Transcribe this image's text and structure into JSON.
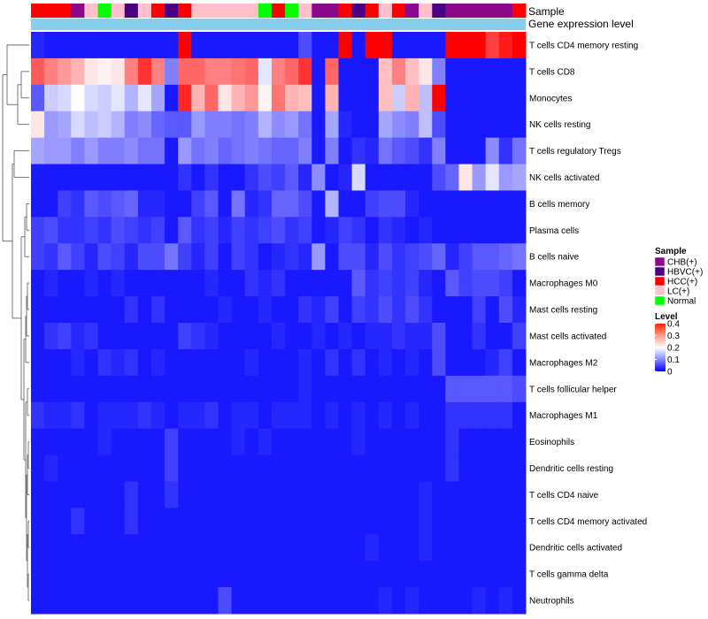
{
  "chart_data": {
    "type": "heatmap",
    "title": "",
    "annotation_labels": {
      "sample": "Sample",
      "expression": "Gene expression level"
    },
    "row_labels": [
      "T cells CD4 memory resting",
      "T cells CD8",
      "Monocytes",
      "NK cells resting",
      "T cells regulatory  Tregs",
      "NK cells activated",
      "B cells memory",
      "Plasma cells",
      "B cells naive",
      "Macrophages M0",
      "Mast cells resting",
      "Mast cells activated",
      "Macrophages M2",
      "T cells follicular helper",
      "Macrophages M1",
      "Eosinophils",
      "Dendritic cells resting",
      "T cells CD4 naive",
      "T cells CD4 memory activated",
      "Dendritic cells activated",
      "T cells gamma delta",
      "Neutrophils"
    ],
    "sample_groups": [
      "HCC(+)",
      "HCC(+)",
      "HCC(+)",
      "CHB(+)",
      "LC(+)",
      "Normal",
      "LC(+)",
      "HBVC(+)",
      "LC(+)",
      "HCC(+)",
      "HBVC(+)",
      "HCC(+)",
      "LC(+)",
      "LC(+)",
      "LC(+)",
      "LC(+)",
      "LC(+)",
      "Normal",
      "HCC(+)",
      "Normal",
      "LC(+)",
      "CHB(+)",
      "CHB(+)",
      "HCC(+)",
      "HBVC(+)",
      "HCC(+)",
      "LC(+)",
      "HCC(+)",
      "CHB(+)",
      "LC(+)",
      "HBVC(+)",
      "CHB(+)",
      "CHB(+)",
      "CHB(+)",
      "CHB(+)",
      "CHB(+)",
      "HCC(+)"
    ],
    "values": [
      [
        0.03,
        0.02,
        0.02,
        0.02,
        0.02,
        0.02,
        0.02,
        0.02,
        0.02,
        0.02,
        0.02,
        0.4,
        0.02,
        0.02,
        0.02,
        0.02,
        0.02,
        0.02,
        0.02,
        0.02,
        0.06,
        0.02,
        0.02,
        0.4,
        0.02,
        0.4,
        0.4,
        0.02,
        0.02,
        0.02,
        0.02,
        0.4,
        0.4,
        0.4,
        0.35,
        0.38,
        0.4
      ],
      [
        0.33,
        0.3,
        0.28,
        0.26,
        0.22,
        0.21,
        0.22,
        0.3,
        0.36,
        0.3,
        0.1,
        0.32,
        0.32,
        0.3,
        0.3,
        0.31,
        0.32,
        0.18,
        0.3,
        0.32,
        0.36,
        0.02,
        0.32,
        0.02,
        0.02,
        0.02,
        0.25,
        0.3,
        0.25,
        0.22,
        0.1,
        0.02,
        0.02,
        0.02,
        0.02,
        0.02,
        0.02
      ],
      [
        0.07,
        0.16,
        0.17,
        0.2,
        0.17,
        0.16,
        0.18,
        0.14,
        0.18,
        0.13,
        0.02,
        0.37,
        0.26,
        0.32,
        0.22,
        0.26,
        0.28,
        0.21,
        0.31,
        0.26,
        0.25,
        0.02,
        0.26,
        0.02,
        0.02,
        0.02,
        0.25,
        0.16,
        0.26,
        0.15,
        0.4,
        0.02,
        0.02,
        0.02,
        0.02,
        0.02,
        0.02
      ],
      [
        0.22,
        0.12,
        0.13,
        0.17,
        0.15,
        0.16,
        0.14,
        0.1,
        0.11,
        0.08,
        0.07,
        0.07,
        0.12,
        0.1,
        0.1,
        0.09,
        0.1,
        0.14,
        0.11,
        0.12,
        0.09,
        0.02,
        0.13,
        0.03,
        0.02,
        0.02,
        0.13,
        0.11,
        0.1,
        0.15,
        0.06,
        0.02,
        0.02,
        0.02,
        0.02,
        0.02,
        0.02
      ],
      [
        0.13,
        0.12,
        0.12,
        0.1,
        0.12,
        0.1,
        0.1,
        0.11,
        0.09,
        0.09,
        0.02,
        0.12,
        0.09,
        0.1,
        0.08,
        0.09,
        0.1,
        0.09,
        0.08,
        0.08,
        0.1,
        0.02,
        0.1,
        0.02,
        0.04,
        0.03,
        0.09,
        0.07,
        0.06,
        0.04,
        0.1,
        0.02,
        0.02,
        0.02,
        0.11,
        0.04,
        0.09
      ],
      [
        0.02,
        0.02,
        0.02,
        0.02,
        0.02,
        0.02,
        0.02,
        0.02,
        0.02,
        0.02,
        0.02,
        0.04,
        0.02,
        0.04,
        0.02,
        0.02,
        0.04,
        0.06,
        0.05,
        0.07,
        0.03,
        0.11,
        0.02,
        0.03,
        0.17,
        0.02,
        0.02,
        0.02,
        0.02,
        0.02,
        0.06,
        0.08,
        0.22,
        0.12,
        0.18,
        0.12,
        0.13
      ],
      [
        0.02,
        0.02,
        0.05,
        0.04,
        0.07,
        0.06,
        0.07,
        0.08,
        0.03,
        0.03,
        0.02,
        0.02,
        0.05,
        0.07,
        0.02,
        0.09,
        0.03,
        0.04,
        0.08,
        0.08,
        0.06,
        0.02,
        0.14,
        0.02,
        0.02,
        0.05,
        0.06,
        0.06,
        0.03,
        0.02,
        0.02,
        0.02,
        0.02,
        0.02,
        0.02,
        0.02,
        0.02
      ],
      [
        0.05,
        0.06,
        0.04,
        0.04,
        0.05,
        0.04,
        0.06,
        0.05,
        0.04,
        0.05,
        0.02,
        0.07,
        0.04,
        0.05,
        0.03,
        0.05,
        0.04,
        0.05,
        0.06,
        0.04,
        0.05,
        0.02,
        0.03,
        0.05,
        0.04,
        0.02,
        0.04,
        0.03,
        0.02,
        0.03,
        0.02,
        0.02,
        0.02,
        0.02,
        0.02,
        0.02,
        0.02
      ],
      [
        0.05,
        0.04,
        0.07,
        0.05,
        0.03,
        0.06,
        0.05,
        0.03,
        0.06,
        0.06,
        0.09,
        0.05,
        0.03,
        0.05,
        0.02,
        0.05,
        0.04,
        0.02,
        0.03,
        0.04,
        0.03,
        0.12,
        0.02,
        0.06,
        0.06,
        0.03,
        0.06,
        0.04,
        0.05,
        0.06,
        0.08,
        0.03,
        0.05,
        0.07,
        0.07,
        0.08,
        0.09
      ],
      [
        0.02,
        0.03,
        0.02,
        0.02,
        0.03,
        0.02,
        0.03,
        0.02,
        0.02,
        0.02,
        0.02,
        0.02,
        0.02,
        0.03,
        0.02,
        0.02,
        0.04,
        0.03,
        0.04,
        0.02,
        0.02,
        0.02,
        0.02,
        0.02,
        0.07,
        0.04,
        0.05,
        0.04,
        0.05,
        0.03,
        0.02,
        0.07,
        0.05,
        0.06,
        0.06,
        0.05,
        0.02
      ],
      [
        0.02,
        0.02,
        0.02,
        0.02,
        0.02,
        0.02,
        0.02,
        0.04,
        0.02,
        0.04,
        0.02,
        0.02,
        0.02,
        0.02,
        0.03,
        0.02,
        0.02,
        0.03,
        0.02,
        0.02,
        0.04,
        0.03,
        0.05,
        0.02,
        0.05,
        0.04,
        0.06,
        0.04,
        0.06,
        0.04,
        0.02,
        0.02,
        0.02,
        0.05,
        0.02,
        0.06,
        0.03
      ],
      [
        0.02,
        0.04,
        0.05,
        0.03,
        0.04,
        0.02,
        0.02,
        0.02,
        0.02,
        0.02,
        0.02,
        0.05,
        0.04,
        0.03,
        0.02,
        0.02,
        0.02,
        0.02,
        0.03,
        0.02,
        0.02,
        0.03,
        0.02,
        0.03,
        0.02,
        0.03,
        0.03,
        0.04,
        0.03,
        0.03,
        0.06,
        0.02,
        0.02,
        0.04,
        0.02,
        0.02,
        0.05
      ],
      [
        0.02,
        0.02,
        0.02,
        0.03,
        0.02,
        0.04,
        0.03,
        0.04,
        0.02,
        0.03,
        0.02,
        0.02,
        0.02,
        0.02,
        0.02,
        0.02,
        0.03,
        0.02,
        0.02,
        0.02,
        0.03,
        0.02,
        0.04,
        0.02,
        0.04,
        0.02,
        0.03,
        0.02,
        0.03,
        0.02,
        0.06,
        0.02,
        0.02,
        0.02,
        0.03,
        0.05,
        0.02
      ],
      [
        0.02,
        0.02,
        0.02,
        0.02,
        0.02,
        0.02,
        0.02,
        0.02,
        0.02,
        0.02,
        0.02,
        0.02,
        0.02,
        0.02,
        0.02,
        0.02,
        0.02,
        0.02,
        0.02,
        0.02,
        0.03,
        0.02,
        0.02,
        0.02,
        0.02,
        0.02,
        0.02,
        0.02,
        0.02,
        0.02,
        0.02,
        0.07,
        0.07,
        0.07,
        0.07,
        0.07,
        0.06
      ],
      [
        0.04,
        0.03,
        0.03,
        0.04,
        0.02,
        0.03,
        0.03,
        0.03,
        0.04,
        0.03,
        0.02,
        0.03,
        0.03,
        0.04,
        0.02,
        0.03,
        0.03,
        0.02,
        0.03,
        0.03,
        0.03,
        0.02,
        0.03,
        0.02,
        0.03,
        0.02,
        0.03,
        0.02,
        0.03,
        0.02,
        0.02,
        0.04,
        0.04,
        0.04,
        0.04,
        0.04,
        0.02
      ],
      [
        0.02,
        0.02,
        0.02,
        0.02,
        0.02,
        0.03,
        0.02,
        0.02,
        0.02,
        0.02,
        0.05,
        0.02,
        0.02,
        0.02,
        0.02,
        0.03,
        0.02,
        0.03,
        0.02,
        0.02,
        0.02,
        0.02,
        0.02,
        0.02,
        0.03,
        0.02,
        0.02,
        0.02,
        0.02,
        0.02,
        0.02,
        0.04,
        0.02,
        0.02,
        0.02,
        0.02,
        0.02
      ],
      [
        0.02,
        0.03,
        0.02,
        0.02,
        0.02,
        0.02,
        0.02,
        0.02,
        0.02,
        0.02,
        0.05,
        0.02,
        0.02,
        0.02,
        0.02,
        0.02,
        0.02,
        0.02,
        0.02,
        0.02,
        0.02,
        0.02,
        0.02,
        0.02,
        0.02,
        0.02,
        0.02,
        0.02,
        0.02,
        0.02,
        0.02,
        0.04,
        0.02,
        0.02,
        0.02,
        0.02,
        0.02
      ],
      [
        0.02,
        0.02,
        0.02,
        0.02,
        0.02,
        0.02,
        0.02,
        0.04,
        0.02,
        0.02,
        0.04,
        0.02,
        0.02,
        0.02,
        0.02,
        0.02,
        0.02,
        0.02,
        0.02,
        0.02,
        0.02,
        0.02,
        0.02,
        0.02,
        0.02,
        0.02,
        0.02,
        0.02,
        0.02,
        0.03,
        0.02,
        0.02,
        0.02,
        0.02,
        0.02,
        0.02,
        0.02
      ],
      [
        0.02,
        0.02,
        0.02,
        0.04,
        0.02,
        0.02,
        0.02,
        0.04,
        0.02,
        0.02,
        0.02,
        0.02,
        0.02,
        0.02,
        0.02,
        0.02,
        0.02,
        0.02,
        0.02,
        0.02,
        0.02,
        0.02,
        0.02,
        0.02,
        0.02,
        0.02,
        0.02,
        0.02,
        0.02,
        0.03,
        0.02,
        0.02,
        0.02,
        0.02,
        0.02,
        0.02,
        0.02
      ],
      [
        0.02,
        0.02,
        0.02,
        0.02,
        0.02,
        0.02,
        0.02,
        0.02,
        0.02,
        0.02,
        0.02,
        0.02,
        0.02,
        0.02,
        0.02,
        0.02,
        0.02,
        0.02,
        0.02,
        0.02,
        0.02,
        0.02,
        0.02,
        0.02,
        0.02,
        0.03,
        0.02,
        0.02,
        0.02,
        0.03,
        0.02,
        0.02,
        0.02,
        0.02,
        0.02,
        0.02,
        0.02
      ],
      [
        0.02,
        0.02,
        0.02,
        0.02,
        0.02,
        0.02,
        0.02,
        0.02,
        0.02,
        0.02,
        0.02,
        0.02,
        0.02,
        0.02,
        0.02,
        0.02,
        0.02,
        0.02,
        0.02,
        0.02,
        0.02,
        0.02,
        0.02,
        0.02,
        0.02,
        0.02,
        0.02,
        0.02,
        0.02,
        0.02,
        0.02,
        0.02,
        0.02,
        0.02,
        0.02,
        0.02,
        0.02
      ],
      [
        0.02,
        0.02,
        0.02,
        0.02,
        0.02,
        0.02,
        0.02,
        0.02,
        0.02,
        0.02,
        0.02,
        0.02,
        0.02,
        0.02,
        0.06,
        0.02,
        0.02,
        0.02,
        0.02,
        0.02,
        0.02,
        0.02,
        0.02,
        0.02,
        0.02,
        0.02,
        0.03,
        0.02,
        0.03,
        0.02,
        0.02,
        0.02,
        0.02,
        0.03,
        0.02,
        0.03,
        0.02
      ]
    ],
    "color_scale": {
      "min": 0,
      "max": 0.4,
      "low": "#0000ff",
      "mid": "#ffffff",
      "high": "#ff0000",
      "midpoint": 0.2
    },
    "legend": {
      "sample_title": "Sample",
      "sample_items": [
        {
          "label": "CHB(+)",
          "color": "#8b0a8b"
        },
        {
          "label": "HBVC(+)",
          "color": "#4b0082"
        },
        {
          "label": "HCC(+)",
          "color": "#ff0000"
        },
        {
          "label": "LC(+)",
          "color": "#ffc0cb"
        },
        {
          "label": "Normal",
          "color": "#00ff00"
        }
      ],
      "level_title": "Level",
      "level_ticks": [
        "0.4",
        "0.3",
        "0.2",
        "0.1",
        "0"
      ],
      "level_tick_values": [
        0.4,
        0.3,
        0.2,
        0.1,
        0
      ],
      "placement": "right"
    },
    "expression_bar_color": "#87ceeb",
    "has_row_dendrogram": true
  }
}
